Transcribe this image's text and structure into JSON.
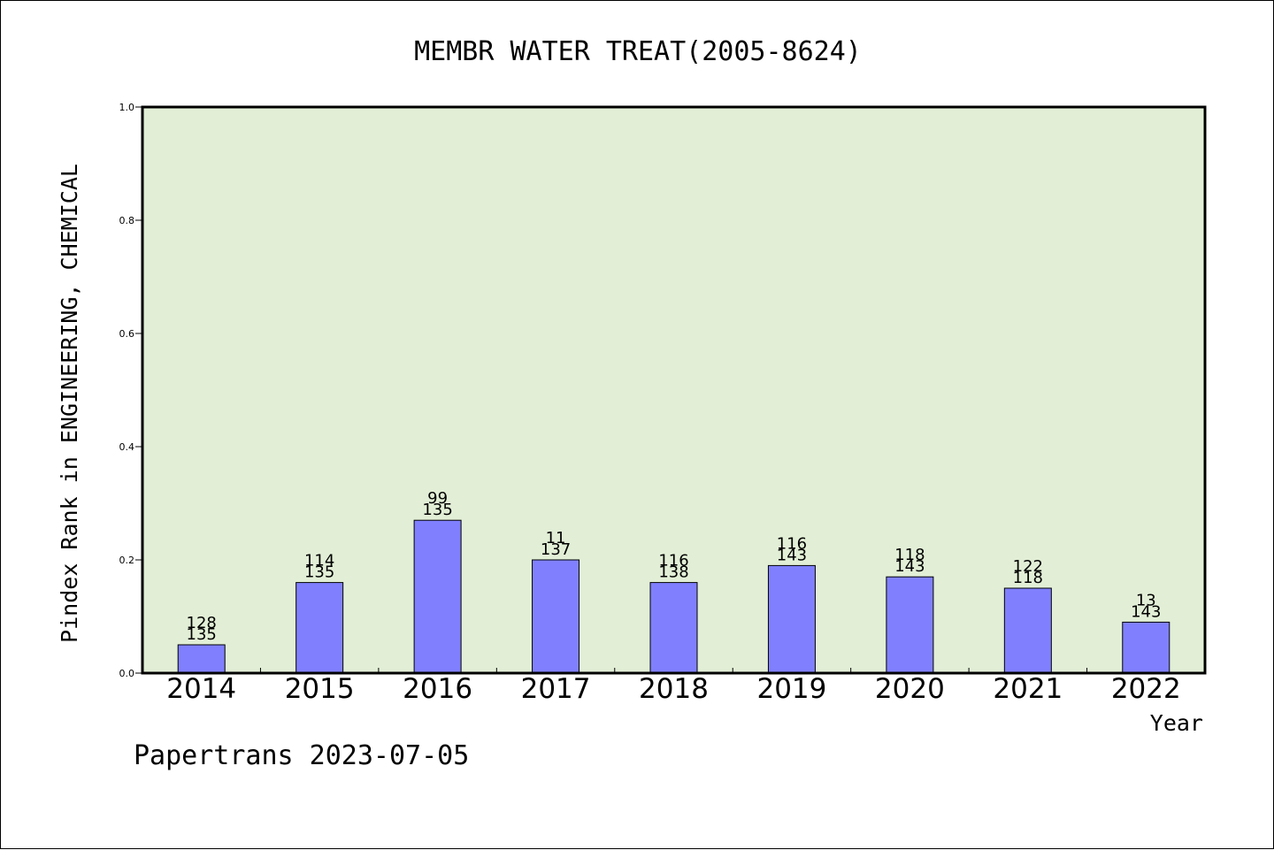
{
  "colors": {
    "plot_background": "#e2efd6",
    "bar_fill": "#8080ff",
    "bar_stroke": "#000000",
    "axis": "#000000"
  },
  "footer": {
    "text": "Papertrans 2023-07-05"
  },
  "chart_data": {
    "type": "bar",
    "title": "MEMBR WATER TREAT(2005-8624)",
    "xlabel": "Year",
    "ylabel": "Pindex Rank in ENGINEERING, CHEMICAL",
    "ylim": [
      0,
      1.0
    ],
    "yticks": [
      "0.0",
      "0.2",
      "0.4",
      "0.6",
      "0.8",
      "1.0"
    ],
    "grid": false,
    "categories": [
      "2014",
      "2015",
      "2016",
      "2017",
      "2018",
      "2019",
      "2020",
      "2021",
      "2022"
    ],
    "values": [
      0.05,
      0.16,
      0.27,
      0.2,
      0.16,
      0.19,
      0.17,
      0.15,
      0.09
    ],
    "label_top": [
      "128",
      "114",
      "99",
      "11",
      "116",
      "116",
      "118",
      "122",
      "13"
    ],
    "label_bottom": [
      "135",
      "135",
      "135",
      "137",
      "138",
      "143",
      "143",
      "118",
      "143"
    ]
  }
}
